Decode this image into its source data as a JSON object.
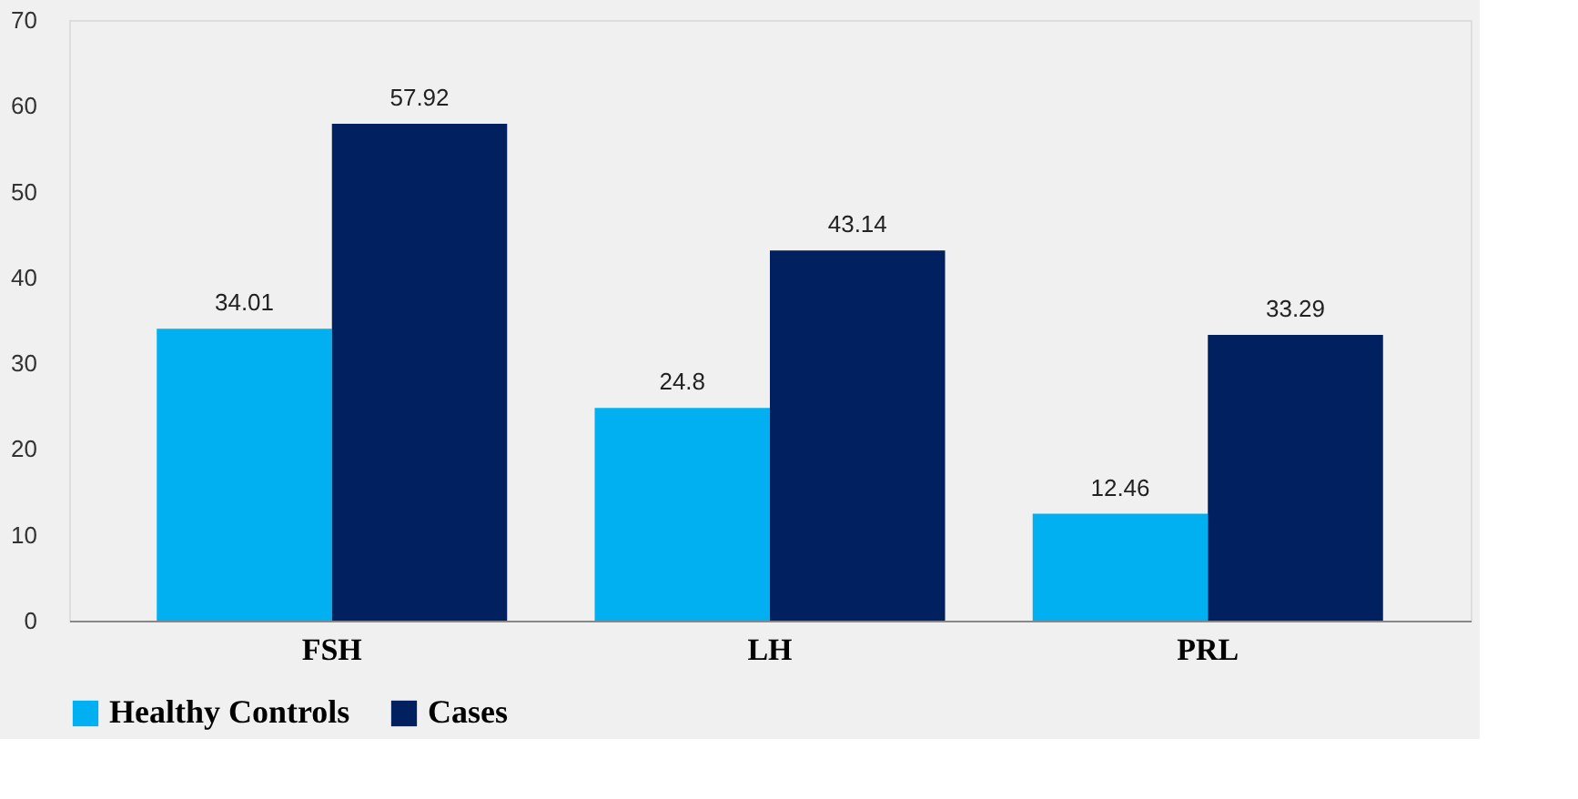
{
  "chart_data": {
    "type": "bar",
    "categories": [
      "FSH",
      "LH",
      "PRL"
    ],
    "series": [
      {
        "name": "Healthy Controls",
        "color": "#00b0f0",
        "values": [
          34.01,
          24.8,
          12.46
        ]
      },
      {
        "name": "Cases",
        "color": "#002060",
        "values": [
          57.92,
          43.14,
          33.29
        ]
      }
    ],
    "ylim": [
      0,
      70
    ],
    "yticks": [
      0,
      10,
      20,
      30,
      40,
      50,
      60,
      70
    ],
    "data_labels": true,
    "grid": false,
    "legend": "bottom"
  }
}
